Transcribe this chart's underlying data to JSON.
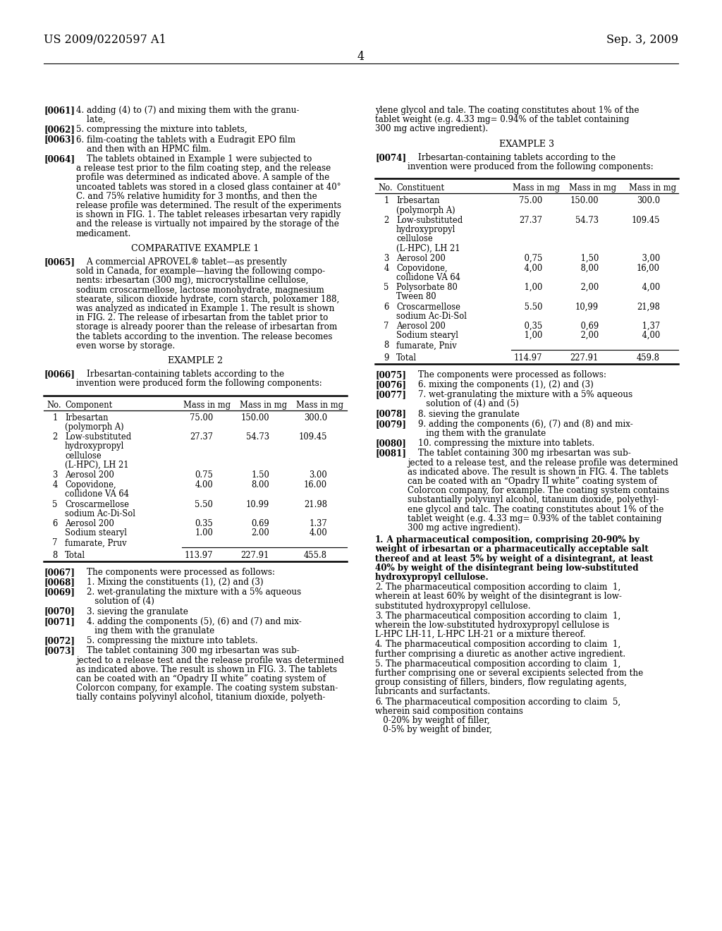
{
  "bg_color": "#ffffff",
  "header_left": "US 2009/0220597 A1",
  "header_right": "Sep. 3, 2009",
  "page_number": "4"
}
